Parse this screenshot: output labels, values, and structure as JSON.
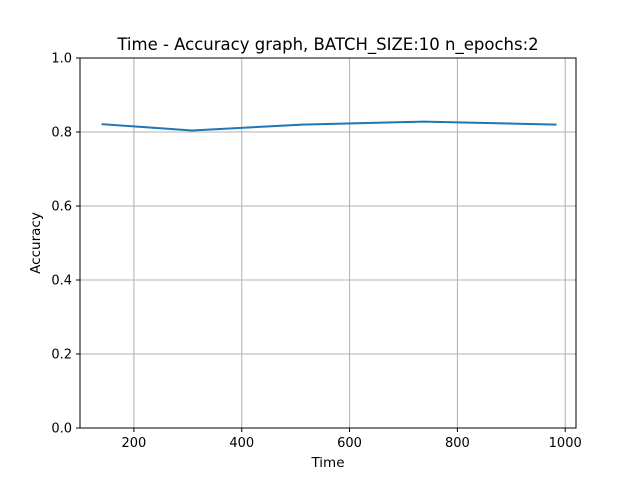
{
  "chart_data": {
    "type": "line",
    "title": "Time - Accuracy graph, BATCH_SIZE:10 n_epochs:2",
    "xlabel": "Time",
    "ylabel": "Accuracy",
    "xlim": [
      100,
      1020
    ],
    "ylim": [
      0.0,
      1.0
    ],
    "xticks": [
      200,
      400,
      600,
      800,
      1000
    ],
    "xtick_labels": [
      "200",
      "400",
      "600",
      "800",
      "1000"
    ],
    "yticks": [
      0.0,
      0.2,
      0.4,
      0.6,
      0.8,
      1.0
    ],
    "ytick_labels": [
      "0.0",
      "0.2",
      "0.4",
      "0.6",
      "0.8",
      "1.0"
    ],
    "grid": true,
    "series": [
      {
        "color": "#1f77b4",
        "x": [
          142,
          308,
          512,
          738,
          982
        ],
        "y": [
          0.821,
          0.804,
          0.82,
          0.828,
          0.82
        ]
      }
    ]
  }
}
